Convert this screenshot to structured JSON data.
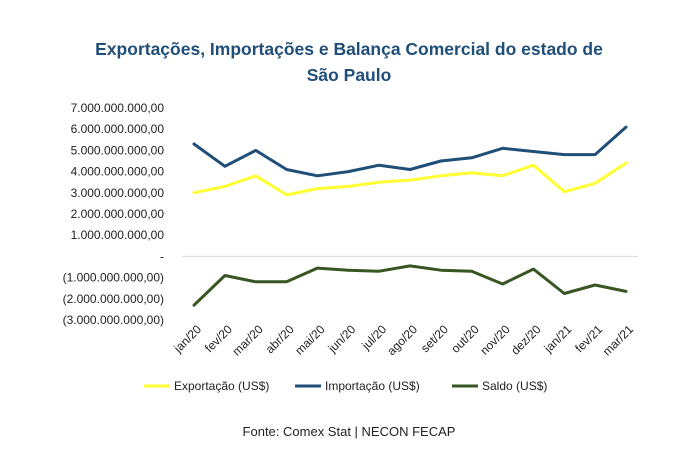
{
  "chart_data": {
    "type": "line",
    "title_line1": "Exportações, Importações e Balança Comercial do estado de",
    "title_line2": "São Paulo",
    "source": "Fonte: Comex Stat | NECON FECAP",
    "categories": [
      "jan/20",
      "fev/20",
      "mar/20",
      "abr/20",
      "mai/20",
      "jun/20",
      "jul/20",
      "ago/20",
      "set/20",
      "out/20",
      "nov/20",
      "dez/20",
      "jan/21",
      "fev/21",
      "mar/21"
    ],
    "ylim": [
      -3000000000,
      7000000000
    ],
    "y_ticks": [
      {
        "value": 7000000000,
        "label": "7.000.000.000,00"
      },
      {
        "value": 6000000000,
        "label": "6.000.000.000,00"
      },
      {
        "value": 5000000000,
        "label": "5.000.000.000,00"
      },
      {
        "value": 4000000000,
        "label": "4.000.000.000,00"
      },
      {
        "value": 3000000000,
        "label": "3.000.000.000,00"
      },
      {
        "value": 2000000000,
        "label": "2.000.000.000,00"
      },
      {
        "value": 1000000000,
        "label": "1.000.000.000,00"
      },
      {
        "value": 0,
        "label": "-"
      },
      {
        "value": -1000000000,
        "label": "(1.000.000.000,00)"
      },
      {
        "value": -2000000000,
        "label": "(2.000.000.000,00)"
      },
      {
        "value": -3000000000,
        "label": "(3.000.000.000,00)"
      }
    ],
    "grid": false,
    "legend_position": "bottom",
    "series": [
      {
        "name": "Exportação (US$)",
        "color": "#FFFF33",
        "values": [
          3000000000,
          3300000000,
          3800000000,
          2900000000,
          3200000000,
          3300000000,
          3500000000,
          3600000000,
          3800000000,
          3950000000,
          3800000000,
          4300000000,
          3050000000,
          3450000000,
          4400000000
        ]
      },
      {
        "name": "Importação (US$)",
        "color": "#1F4E79",
        "values": [
          5300000000,
          4250000000,
          5000000000,
          4100000000,
          3800000000,
          4000000000,
          4300000000,
          4100000000,
          4500000000,
          4650000000,
          5100000000,
          4950000000,
          4800000000,
          4800000000,
          6100000000
        ]
      },
      {
        "name": "Saldo (US$)",
        "color": "#375623",
        "values": [
          -2300000000,
          -900000000,
          -1200000000,
          -1200000000,
          -550000000,
          -650000000,
          -700000000,
          -450000000,
          -650000000,
          -700000000,
          -1300000000,
          -600000000,
          -1750000000,
          -1350000000,
          -1650000000
        ]
      }
    ]
  }
}
